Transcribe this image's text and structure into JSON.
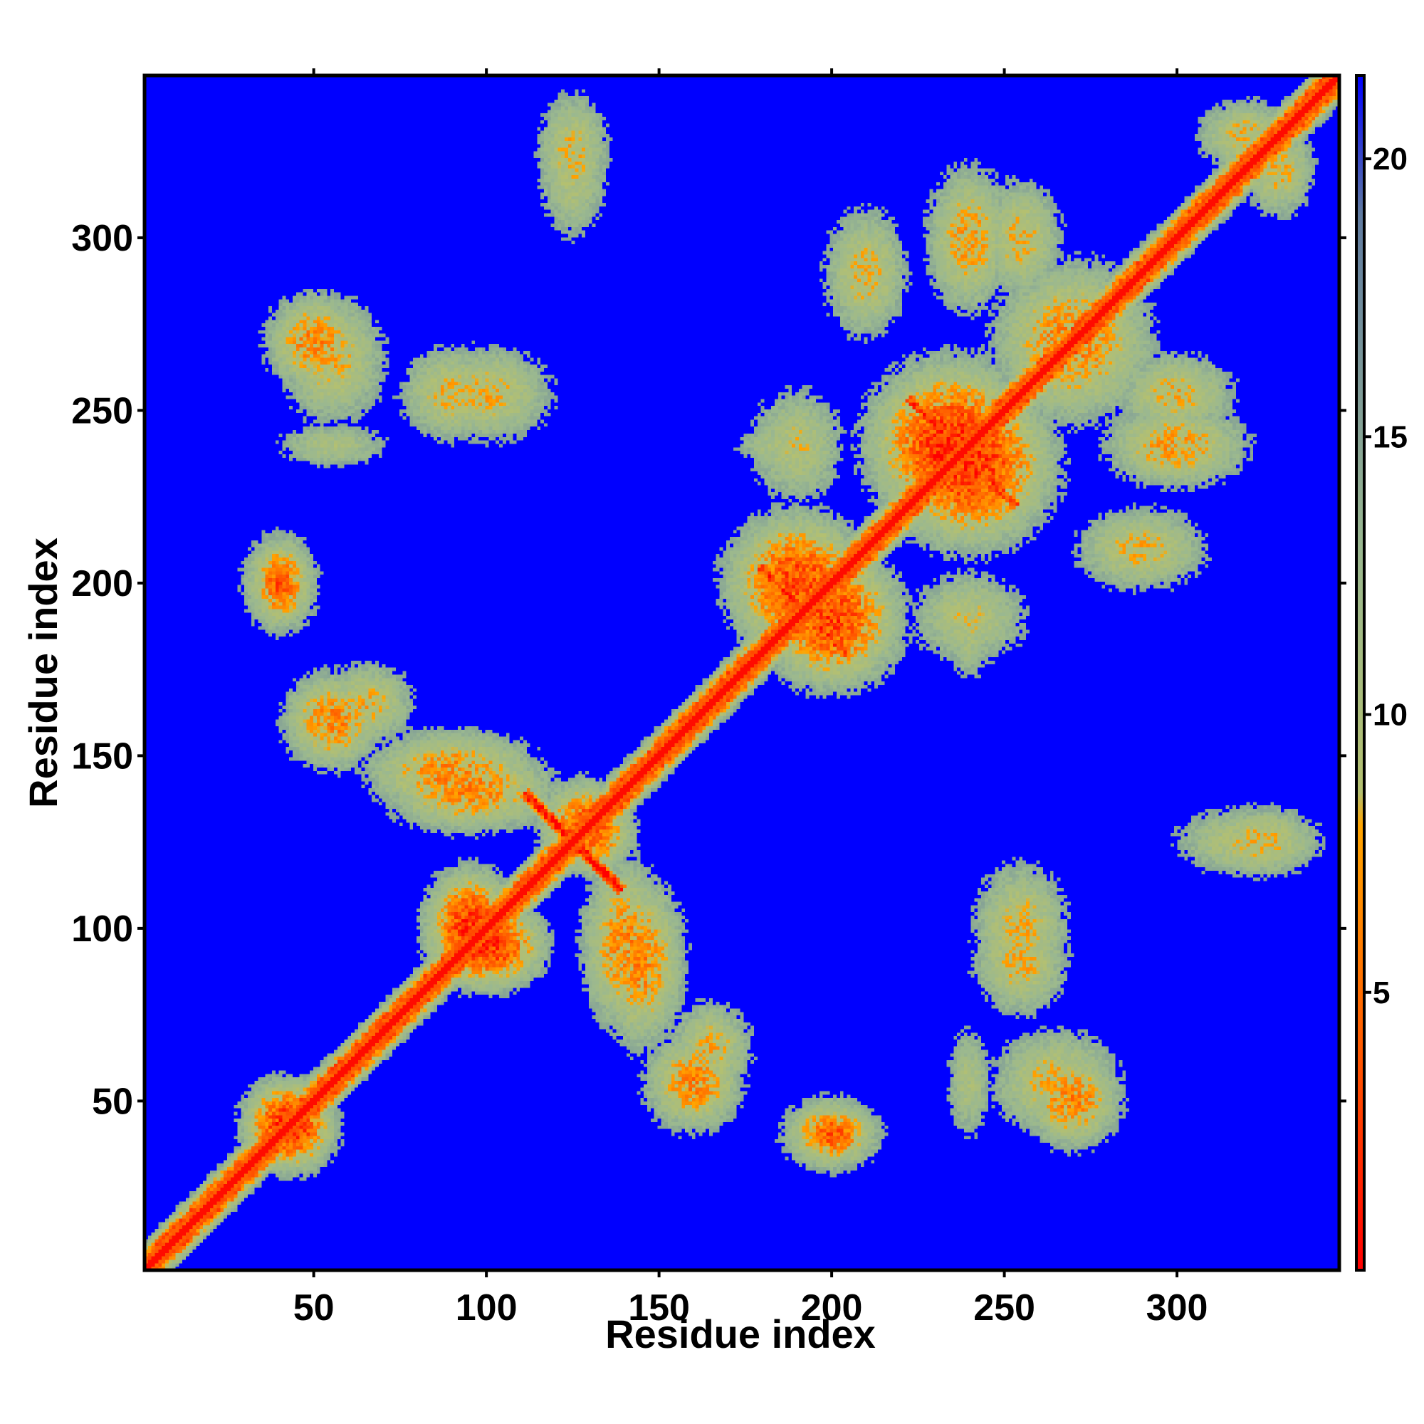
{
  "chart_data": {
    "type": "heatmap",
    "title": "",
    "xlabel": "Residue index",
    "ylabel": "Residue index",
    "n_residues": 347,
    "xlim": [
      1,
      347
    ],
    "ylim": [
      1,
      347
    ],
    "x_ticks": [
      50,
      100,
      150,
      200,
      250,
      300
    ],
    "y_ticks": [
      50,
      100,
      150,
      200,
      250,
      300
    ],
    "colorbar": {
      "range": [
        0,
        21.5
      ],
      "ticks": [
        5,
        10,
        15,
        20
      ],
      "stops": [
        {
          "value": 0,
          "color": "#ff0000"
        },
        {
          "value": 4,
          "color": "#ff5a00"
        },
        {
          "value": 8,
          "color": "#ffa500"
        },
        {
          "value": 8.6,
          "color": "#b4c070"
        },
        {
          "value": 13,
          "color": "#9ab890"
        },
        {
          "value": 19,
          "color": "#607ba0"
        },
        {
          "value": 21.5,
          "color": "#0000ff"
        }
      ]
    },
    "colors": {
      "background": "#0000ff",
      "far": "#0000ff",
      "mid": "#9ab890",
      "near": "#ffa500",
      "contact": "#ff0000"
    },
    "contact_features": [
      {
        "kind": "diagonal"
      },
      {
        "kind": "blob",
        "x": 42,
        "y": 43,
        "sx": 14,
        "sy": 14,
        "strength": 0.9
      },
      {
        "kind": "blob",
        "x": 95,
        "y": 100,
        "sx": 14,
        "sy": 18,
        "strength": 0.9
      },
      {
        "kind": "blob",
        "x": 130,
        "y": 128,
        "sx": 14,
        "sy": 14,
        "strength": 0.8
      },
      {
        "kind": "antidiag",
        "x": 125,
        "y": 125,
        "half_len": 20,
        "strength": 1.0
      },
      {
        "kind": "blob",
        "x": 90,
        "y": 145,
        "sx": 28,
        "sy": 14,
        "strength": 0.7
      },
      {
        "kind": "blob",
        "x": 140,
        "y": 95,
        "sx": 14,
        "sy": 28,
        "strength": 0.7
      },
      {
        "kind": "blob",
        "x": 55,
        "y": 160,
        "sx": 16,
        "sy": 16,
        "strength": 0.7
      },
      {
        "kind": "blob",
        "x": 160,
        "y": 55,
        "sx": 16,
        "sy": 16,
        "strength": 0.7
      },
      {
        "kind": "blob",
        "x": 40,
        "y": 200,
        "sx": 12,
        "sy": 16,
        "strength": 0.7
      },
      {
        "kind": "blob",
        "x": 200,
        "y": 40,
        "sx": 16,
        "sy": 12,
        "strength": 0.7
      },
      {
        "kind": "blob",
        "x": 55,
        "y": 265,
        "sx": 18,
        "sy": 22,
        "strength": 0.6
      },
      {
        "kind": "blob",
        "x": 100,
        "y": 255,
        "sx": 22,
        "sy": 16,
        "strength": 0.6
      },
      {
        "kind": "blob",
        "x": 55,
        "y": 240,
        "sx": 20,
        "sy": 8,
        "strength": 0.5
      },
      {
        "kind": "blob",
        "x": 125,
        "y": 325,
        "sx": 12,
        "sy": 20,
        "strength": 0.6
      },
      {
        "kind": "blob",
        "x": 200,
        "y": 190,
        "sx": 22,
        "sy": 22,
        "strength": 0.85
      },
      {
        "kind": "antidiag",
        "x": 192,
        "y": 192,
        "half_len": 18,
        "strength": 0.9
      },
      {
        "kind": "blob",
        "x": 240,
        "y": 235,
        "sx": 26,
        "sy": 26,
        "strength": 0.9
      },
      {
        "kind": "antidiag",
        "x": 238,
        "y": 238,
        "half_len": 22,
        "strength": 0.9
      },
      {
        "kind": "blob",
        "x": 270,
        "y": 270,
        "sx": 26,
        "sy": 26,
        "strength": 0.7
      },
      {
        "kind": "blob",
        "x": 300,
        "y": 240,
        "sx": 24,
        "sy": 14,
        "strength": 0.65
      },
      {
        "kind": "blob",
        "x": 290,
        "y": 210,
        "sx": 22,
        "sy": 14,
        "strength": 0.6
      },
      {
        "kind": "blob",
        "x": 255,
        "y": 300,
        "sx": 14,
        "sy": 20,
        "strength": 0.6
      },
      {
        "kind": "blob",
        "x": 270,
        "y": 50,
        "sx": 16,
        "sy": 16,
        "strength": 0.7
      },
      {
        "kind": "blob",
        "x": 255,
        "y": 90,
        "sx": 16,
        "sy": 18,
        "strength": 0.6
      },
      {
        "kind": "blob",
        "x": 320,
        "y": 125,
        "sx": 24,
        "sy": 12,
        "strength": 0.55
      },
      {
        "kind": "blob",
        "x": 165,
        "y": 65,
        "sx": 14,
        "sy": 16,
        "strength": 0.6
      },
      {
        "kind": "blob",
        "x": 185,
        "y": 240,
        "sx": 16,
        "sy": 8,
        "strength": 0.5
      },
      {
        "kind": "blob",
        "x": 320,
        "y": 330,
        "sx": 16,
        "sy": 12,
        "strength": 0.6
      },
      {
        "kind": "blob",
        "x": 200,
        "y": 40,
        "sx": 14,
        "sy": 10,
        "strength": 0.8
      },
      {
        "kind": "blob",
        "x": 240,
        "y": 190,
        "sx": 20,
        "sy": 16,
        "strength": 0.55
      }
    ]
  }
}
